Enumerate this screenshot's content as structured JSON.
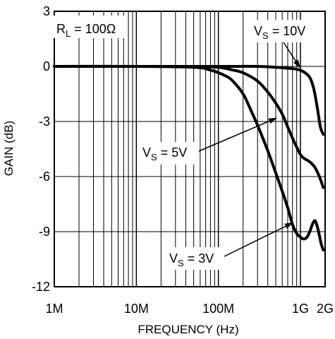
{
  "chart_data": {
    "type": "line",
    "xlabel": "FREQUENCY (Hz)",
    "ylabel": "GAIN (dB)",
    "x_scale": "log",
    "xlim": [
      1000000,
      2000000000
    ],
    "ylim": [
      -12,
      3
    ],
    "grid": true,
    "x_ticks": [
      {
        "value": 1000000,
        "label": "1M"
      },
      {
        "value": 10000000,
        "label": "10M"
      },
      {
        "value": 100000000,
        "label": "100M"
      },
      {
        "value": 1000000000,
        "label": "1G"
      },
      {
        "value": 2000000000,
        "label": "2G"
      }
    ],
    "y_ticks": [
      {
        "value": 3,
        "label": "3"
      },
      {
        "value": 0,
        "label": "0"
      },
      {
        "value": -3,
        "label": "-3"
      },
      {
        "value": -6,
        "label": "-6"
      },
      {
        "value": -9,
        "label": "-9"
      },
      {
        "value": -12,
        "label": "-12"
      }
    ],
    "condition": {
      "prefix": "R",
      "sub": "L",
      "suffix": " = 100Ω"
    },
    "series": [
      {
        "name": "VS = 10V",
        "label": {
          "prefix": "V",
          "sub": "S",
          "suffix": " = 10V"
        },
        "x": [
          1000000,
          10000000,
          100000000,
          300000000,
          500000000,
          700000000,
          900000000,
          1100000000,
          1300000000,
          1450000000,
          1600000000,
          1750000000,
          1900000000
        ],
        "y": [
          0,
          0,
          0,
          0,
          -0.05,
          -0.1,
          -0.15,
          -0.3,
          -0.6,
          -1.2,
          -2.2,
          -3.3,
          -3.7
        ]
      },
      {
        "name": "VS = 5V",
        "label": {
          "prefix": "V",
          "sub": "S",
          "suffix": " = 5V"
        },
        "x": [
          1000000,
          10000000,
          50000000,
          100000000,
          150000000,
          200000000,
          300000000,
          400000000,
          500000000,
          600000000,
          700000000,
          800000000,
          900000000,
          1000000000,
          1100000000,
          1300000000,
          1500000000,
          1700000000,
          1900000000
        ],
        "y": [
          0,
          0,
          0,
          -0.05,
          -0.2,
          -0.35,
          -0.8,
          -1.4,
          -2.0,
          -2.6,
          -3.3,
          -3.9,
          -4.4,
          -4.8,
          -5.0,
          -5.2,
          -5.5,
          -6.0,
          -6.6
        ]
      },
      {
        "name": "VS = 3V",
        "label": {
          "prefix": "V",
          "sub": "S",
          "suffix": " = 3V"
        },
        "x": [
          1000000,
          10000000,
          50000000,
          80000000,
          120000000,
          150000000,
          200000000,
          250000000,
          300000000,
          400000000,
          500000000,
          600000000,
          700000000,
          800000000,
          900000000,
          1000000000,
          1100000000,
          1200000000,
          1300000000,
          1400000000,
          1500000000,
          1600000000,
          1700000000,
          1800000000,
          1900000000
        ],
        "y": [
          0,
          0,
          -0.05,
          -0.2,
          -0.5,
          -0.8,
          -1.5,
          -2.4,
          -3.2,
          -4.6,
          -5.8,
          -6.8,
          -7.7,
          -8.6,
          -9.1,
          -9.3,
          -9.4,
          -9.3,
          -9.0,
          -8.6,
          -8.4,
          -8.7,
          -9.2,
          -9.7,
          -10.0
        ]
      }
    ],
    "annotations": [
      {
        "series": "VS = 10V",
        "at_x": 1000000000,
        "at_y": -0.1
      },
      {
        "series": "VS = 5V",
        "at_x": 520000000,
        "at_y": -2.8
      },
      {
        "series": "VS = 3V",
        "at_x": 820000000,
        "at_y": -8.5
      }
    ]
  }
}
